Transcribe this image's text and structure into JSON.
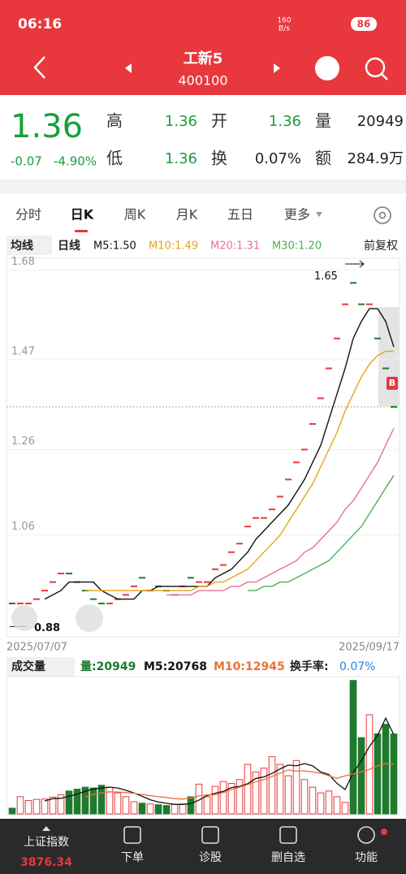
{
  "status_bar": {
    "time": "06:16",
    "speed": "160",
    "speed_unit": "B/s",
    "battery": "86"
  },
  "header": {
    "title": "工新5",
    "code": "400100"
  },
  "quote": {
    "price": "1.36",
    "change": "-0.07",
    "change_pct": "-4.90%",
    "stats": [
      {
        "label": "高",
        "value": "1.36"
      },
      {
        "label": "开",
        "value": "1.36"
      },
      {
        "label": "量",
        "value": "20949"
      },
      {
        "label": "低",
        "value": "1.36"
      },
      {
        "label": "换",
        "value": "0.07%"
      },
      {
        "label": "额",
        "value": "284.9万"
      }
    ]
  },
  "tabs": [
    "分时",
    "日K",
    "周K",
    "月K",
    "五日",
    "更多"
  ],
  "chart_data": [
    {
      "type": "kline",
      "ma_menu": "均线",
      "period": "日线",
      "adjust": "前复权",
      "values": [
        0.9,
        0.9,
        0.9,
        0.91,
        0.93,
        0.95,
        0.97,
        0.97,
        0.95,
        0.93,
        0.91,
        0.9,
        0.9,
        0.91,
        0.92,
        0.94,
        0.96,
        0.93,
        0.94,
        0.93,
        0.92,
        0.94,
        0.96,
        0.95,
        0.95,
        0.98,
        0.99,
        1.02,
        1.04,
        1.08,
        1.1,
        1.1,
        1.12,
        1.15,
        1.19,
        1.23,
        1.26,
        1.32,
        1.38,
        1.45,
        1.52,
        1.6,
        1.65,
        1.6,
        1.6,
        1.52,
        1.45,
        1.36
      ],
      "directions": [
        "down",
        "up",
        "up",
        "up",
        "up",
        "up",
        "up",
        "down",
        "down",
        "down",
        "down",
        "down",
        "up",
        "up",
        "up",
        "up",
        "down",
        "up",
        "down",
        "down",
        "up",
        "up",
        "down",
        "up",
        "up",
        "up",
        "up",
        "up",
        "up",
        "up",
        "up",
        "up",
        "up",
        "up",
        "up",
        "up",
        "up",
        "up",
        "up",
        "up",
        "up",
        "up",
        "down",
        "down",
        "up",
        "down",
        "down",
        "down"
      ],
      "up_color": "#e8383d",
      "down_color": "#1f7a2e",
      "series": [
        {
          "name": "M5:1.50",
          "color": "#111111",
          "values": [
            null,
            null,
            null,
            null,
            0.91,
            0.92,
            0.93,
            0.95,
            0.95,
            0.95,
            0.95,
            0.93,
            0.92,
            0.91,
            0.91,
            0.91,
            0.93,
            0.93,
            0.94,
            0.94,
            0.94,
            0.94,
            0.94,
            0.94,
            0.94,
            0.96,
            0.97,
            0.98,
            1.0,
            1.02,
            1.05,
            1.07,
            1.09,
            1.11,
            1.13,
            1.16,
            1.19,
            1.23,
            1.27,
            1.33,
            1.39,
            1.45,
            1.52,
            1.56,
            1.59,
            1.59,
            1.56,
            1.5
          ]
        },
        {
          "name": "M10:1.49",
          "color": "#e8a317",
          "values": [
            null,
            null,
            null,
            null,
            null,
            null,
            null,
            null,
            null,
            0.93,
            0.93,
            0.93,
            0.93,
            0.93,
            0.93,
            0.93,
            0.93,
            0.93,
            0.93,
            0.93,
            0.93,
            0.93,
            0.93,
            0.94,
            0.94,
            0.95,
            0.95,
            0.96,
            0.97,
            0.98,
            1.0,
            1.02,
            1.04,
            1.06,
            1.09,
            1.12,
            1.15,
            1.18,
            1.22,
            1.26,
            1.3,
            1.35,
            1.39,
            1.43,
            1.46,
            1.48,
            1.49,
            1.49
          ]
        },
        {
          "name": "M20:1.31",
          "color": "#e8708f",
          "values": [
            null,
            null,
            null,
            null,
            null,
            null,
            null,
            null,
            null,
            null,
            null,
            null,
            null,
            null,
            null,
            null,
            null,
            null,
            null,
            0.92,
            0.92,
            0.92,
            0.92,
            0.93,
            0.93,
            0.93,
            0.93,
            0.94,
            0.94,
            0.95,
            0.95,
            0.96,
            0.97,
            0.98,
            0.99,
            1.0,
            1.02,
            1.03,
            1.05,
            1.07,
            1.09,
            1.12,
            1.14,
            1.17,
            1.2,
            1.23,
            1.27,
            1.31
          ]
        },
        {
          "name": "M30:1.20",
          "color": "#4caf50",
          "values": [
            null,
            null,
            null,
            null,
            null,
            null,
            null,
            null,
            null,
            null,
            null,
            null,
            null,
            null,
            null,
            null,
            null,
            null,
            null,
            null,
            null,
            null,
            null,
            null,
            null,
            null,
            null,
            null,
            null,
            0.93,
            0.93,
            0.94,
            0.94,
            0.95,
            0.95,
            0.96,
            0.97,
            0.98,
            0.99,
            1.0,
            1.02,
            1.04,
            1.06,
            1.08,
            1.11,
            1.14,
            1.17,
            1.2
          ]
        }
      ],
      "ylim": [
        0.82,
        1.7
      ],
      "yticks": [
        1.68,
        1.47,
        1.26,
        1.06
      ],
      "xticks": [
        "2025/07/07",
        "2025/09/17"
      ],
      "max_label": 1.65,
      "min_label": 0.88,
      "last_price": 1.36,
      "marker": "B"
    },
    {
      "type": "bar",
      "title": "成交量",
      "volume_label": "量:20949",
      "turnover_label": "换手率:",
      "turnover": "0.07%",
      "values": [
        1500,
        4500,
        3500,
        3800,
        3900,
        4400,
        5000,
        6000,
        6500,
        7000,
        6800,
        7500,
        7000,
        5500,
        4500,
        3200,
        2800,
        2600,
        2400,
        2200,
        2500,
        2600,
        4500,
        7800,
        4500,
        7200,
        8500,
        8000,
        9000,
        13000,
        11000,
        12000,
        15000,
        13000,
        10000,
        14000,
        9000,
        7000,
        5500,
        6000,
        4500,
        3000,
        35000,
        20000,
        26000,
        21000,
        23500,
        20949
      ],
      "series": [
        {
          "name": "M5:20768",
          "color": "#111111",
          "values": [
            null,
            null,
            null,
            null,
            3400,
            4000,
            4100,
            4600,
            5200,
            5900,
            6500,
            6800,
            7000,
            6800,
            6200,
            5500,
            4600,
            3700,
            3100,
            2800,
            2500,
            2500,
            2700,
            3600,
            4800,
            5400,
            5900,
            6900,
            7200,
            7900,
            9300,
            9700,
            10600,
            11800,
            12800,
            12600,
            13200,
            12600,
            11000,
            10300,
            8000,
            6400,
            10800,
            13900,
            17700,
            20600,
            25100,
            20768
          ]
        },
        {
          "name": "M10:12945",
          "color": "#e8733a",
          "values": [
            null,
            null,
            null,
            null,
            null,
            null,
            null,
            null,
            null,
            4400,
            5100,
            5500,
            5800,
            5700,
            5600,
            5400,
            5100,
            4800,
            4500,
            4300,
            4000,
            3900,
            4200,
            4700,
            5000,
            5000,
            5600,
            6400,
            7000,
            7700,
            8400,
            9000,
            9800,
            10700,
            11500,
            11200,
            11300,
            11000,
            10700,
            10000,
            9300,
            10000,
            10500,
            11000,
            11700,
            12600,
            13200,
            12945
          ]
        }
      ],
      "ylim": [
        0,
        36000
      ]
    }
  ],
  "nav": [
    {
      "label": "上证指数",
      "value": "3876.34"
    },
    {
      "label": "下单"
    },
    {
      "label": "诊股"
    },
    {
      "label": "删自选"
    },
    {
      "label": "功能"
    }
  ]
}
